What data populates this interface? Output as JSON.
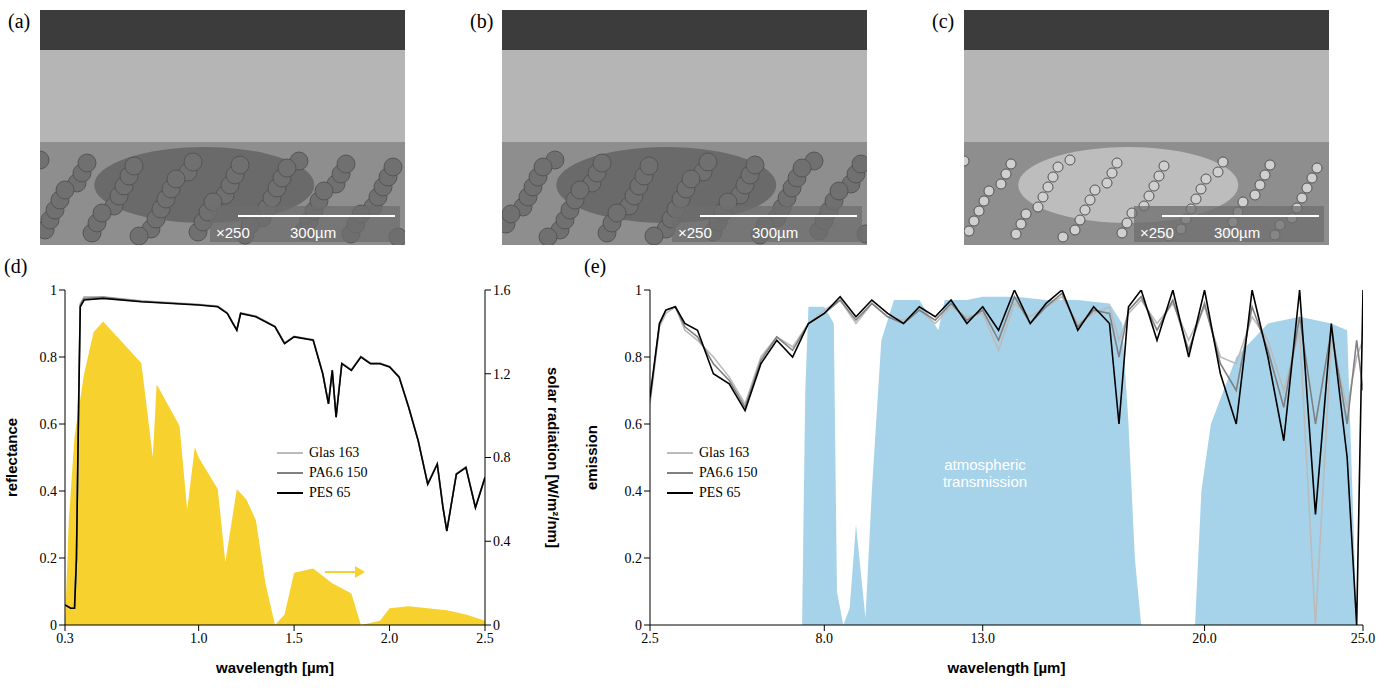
{
  "images": [
    {
      "label": "(a)",
      "magnification": "×250",
      "scale_bar": "300µm"
    },
    {
      "label": "(b)",
      "magnification": "×250",
      "scale_bar": "300µm"
    },
    {
      "label": "(c)",
      "magnification": "×250",
      "scale_bar": "300µm"
    }
  ],
  "chart_data": [
    {
      "type": "line",
      "label": "(d)",
      "x_label": "wavelength [µm]",
      "y_label": "reflectance",
      "y2_label": "solar radiation [W/m²/nm]",
      "xlim": [
        0.3,
        2.5
      ],
      "xticks": [
        0.3,
        {
          "value": 1,
          "label": "1.0"
        },
        1.5,
        {
          "value": 2,
          "label": "2.0"
        },
        2.5
      ],
      "ylim": [
        0,
        1
      ],
      "yticks": [
        0,
        0.2,
        0.4,
        0.6,
        0.8,
        1
      ],
      "y2lim": [
        0,
        1.6
      ],
      "y2ticks": [
        0,
        0.4,
        0.8,
        1.2,
        1.6
      ],
      "grid": false,
      "legend": "center right",
      "series": [
        {
          "type": "area",
          "axis": "y2",
          "color": "#f7d12e",
          "x": [
            0.3,
            0.32,
            0.35,
            0.4,
            0.45,
            0.5,
            0.55,
            0.6,
            0.7,
            0.76,
            0.78,
            0.9,
            0.94,
            0.98,
            1.0,
            1.1,
            1.14,
            1.2,
            1.25,
            1.3,
            1.35,
            1.4,
            1.45,
            1.5,
            1.6,
            1.7,
            1.8,
            1.85,
            1.95,
            2.0,
            2.1,
            2.2,
            2.3,
            2.4,
            2.5
          ],
          "values": [
            0.0,
            0.5,
            0.9,
            1.2,
            1.4,
            1.45,
            1.4,
            1.35,
            1.25,
            0.8,
            1.15,
            0.95,
            0.55,
            0.85,
            0.8,
            0.65,
            0.3,
            0.65,
            0.6,
            0.5,
            0.2,
            0.0,
            0.05,
            0.25,
            0.27,
            0.2,
            0.15,
            0.0,
            0.02,
            0.08,
            0.09,
            0.08,
            0.07,
            0.05,
            0.02
          ]
        },
        {
          "name": "Glas 163",
          "color": "#bbbbbb",
          "x": [
            0.3,
            0.33,
            0.35,
            0.36,
            0.37,
            0.38,
            0.4,
            0.5,
            0.7,
            1.0,
            1.1,
            1.15,
            1.18,
            1.2,
            1.22,
            1.3,
            1.4,
            1.45,
            1.5,
            1.6,
            1.65,
            1.68,
            1.7,
            1.72,
            1.75,
            1.8,
            1.85,
            1.9,
            1.95,
            2.0,
            2.05,
            2.1,
            2.15,
            2.2,
            2.25,
            2.28,
            2.3,
            2.35,
            2.4,
            2.45,
            2.5
          ],
          "values": [
            0.06,
            0.05,
            0.05,
            0.21,
            0.62,
            0.96,
            0.98,
            0.98,
            0.968,
            0.957,
            0.952,
            0.932,
            0.9,
            0.882,
            0.932,
            0.922,
            0.892,
            0.842,
            0.862,
            0.852,
            0.752,
            0.662,
            0.762,
            0.622,
            0.782,
            0.762,
            0.802,
            0.782,
            0.782,
            0.772,
            0.742,
            0.652,
            0.552,
            0.422,
            0.482,
            0.352,
            0.282,
            0.452,
            0.472,
            0.352,
            0.442
          ]
        },
        {
          "name": "PA6.6 150",
          "color": "#808080",
          "x": [
            0.3,
            0.33,
            0.35,
            0.36,
            0.37,
            0.38,
            0.4,
            0.5,
            0.7,
            1.0,
            1.1,
            1.15,
            1.18,
            1.2,
            1.22,
            1.3,
            1.4,
            1.45,
            1.5,
            1.6,
            1.65,
            1.68,
            1.7,
            1.72,
            1.75,
            1.8,
            1.85,
            1.9,
            1.95,
            2.0,
            2.05,
            2.1,
            2.15,
            2.2,
            2.25,
            2.28,
            2.3,
            2.35,
            2.4,
            2.45,
            2.5
          ],
          "values": [
            0.06,
            0.05,
            0.05,
            0.2,
            0.61,
            0.955,
            0.975,
            0.978,
            0.966,
            0.956,
            0.951,
            0.931,
            0.9,
            0.881,
            0.931,
            0.921,
            0.891,
            0.841,
            0.861,
            0.851,
            0.751,
            0.661,
            0.761,
            0.621,
            0.781,
            0.761,
            0.801,
            0.781,
            0.781,
            0.771,
            0.741,
            0.651,
            0.551,
            0.421,
            0.481,
            0.351,
            0.281,
            0.451,
            0.471,
            0.351,
            0.441
          ]
        },
        {
          "name": "PES 65",
          "color": "#000000",
          "x": [
            0.3,
            0.33,
            0.35,
            0.36,
            0.37,
            0.38,
            0.4,
            0.5,
            0.7,
            1.0,
            1.1,
            1.15,
            1.18,
            1.2,
            1.22,
            1.3,
            1.4,
            1.45,
            1.5,
            1.6,
            1.65,
            1.68,
            1.7,
            1.72,
            1.75,
            1.8,
            1.85,
            1.9,
            1.95,
            2.0,
            2.05,
            2.1,
            2.15,
            2.2,
            2.25,
            2.28,
            2.3,
            2.35,
            2.4,
            2.45,
            2.5
          ],
          "values": [
            0.06,
            0.05,
            0.05,
            0.2,
            0.6,
            0.95,
            0.97,
            0.975,
            0.965,
            0.955,
            0.95,
            0.93,
            0.9,
            0.88,
            0.93,
            0.92,
            0.89,
            0.84,
            0.86,
            0.85,
            0.75,
            0.66,
            0.76,
            0.62,
            0.78,
            0.76,
            0.8,
            0.78,
            0.78,
            0.77,
            0.74,
            0.65,
            0.55,
            0.42,
            0.48,
            0.35,
            0.28,
            0.45,
            0.47,
            0.35,
            0.44
          ]
        }
      ]
    },
    {
      "type": "line",
      "label": "(e)",
      "x_label": "wavelength [µm]",
      "y_label": "emission",
      "xlim": [
        2.5,
        25
      ],
      "xticks": [
        2.5,
        {
          "value": 8,
          "label": "8.0"
        },
        {
          "value": 13,
          "label": "13.0"
        },
        {
          "value": 20,
          "label": "20.0"
        },
        {
          "value": 25,
          "label": "25.0"
        }
      ],
      "ylim": [
        0,
        1
      ],
      "yticks": [
        0,
        0.2,
        0.4,
        0.6,
        0.8,
        1
      ],
      "grid": false,
      "legend": "center left",
      "annotations": [
        {
          "text": "atmospheric transmission"
        }
      ],
      "series": [
        {
          "type": "area",
          "color": "#a6d3ea",
          "x": [
            2.5,
            7.3,
            7.4,
            7.5,
            8.0,
            8.3,
            8.4,
            8.6,
            8.8,
            9.0,
            9.3,
            9.5,
            9.8,
            10.2,
            11.0,
            11.6,
            11.8,
            12.5,
            13.0,
            14.0,
            15.0,
            16.0,
            17.0,
            17.4,
            17.6,
            17.8,
            18.0,
            19.7,
            19.9,
            20.2,
            20.6,
            21.0,
            21.5,
            22.0,
            23.0,
            24.0,
            24.5,
            24.7,
            24.8,
            25.0
          ],
          "values": [
            0,
            0,
            0.7,
            0.95,
            0.95,
            0.9,
            0.1,
            0,
            0.05,
            0.3,
            0.02,
            0.4,
            0.85,
            0.97,
            0.97,
            0.88,
            0.97,
            0.97,
            0.98,
            0.98,
            0.97,
            0.97,
            0.96,
            0.9,
            0.6,
            0.2,
            0,
            0,
            0.4,
            0.6,
            0.7,
            0.8,
            0.85,
            0.9,
            0.92,
            0.9,
            0.88,
            0.3,
            0,
            0
          ]
        },
        {
          "name": "Glas 163",
          "color": "#bbbbbb",
          "x": [
            2.5,
            2.8,
            3.0,
            3.3,
            3.6,
            4.0,
            4.5,
            5.0,
            5.5,
            6.0,
            6.5,
            7.0,
            7.5,
            8.0,
            8.5,
            9.0,
            9.5,
            10.0,
            10.5,
            11.0,
            11.5,
            12.0,
            12.5,
            13.0,
            13.5,
            14.0,
            14.5,
            15.0,
            15.5,
            16.0,
            16.5,
            17.0,
            17.3,
            17.6,
            18.0,
            18.5,
            19.0,
            19.5,
            20.0,
            20.5,
            21.0,
            21.5,
            22.0,
            22.5,
            23.0,
            23.5,
            24.0,
            24.5,
            24.8,
            25.0
          ],
          "values": [
            0.66,
            0.89,
            0.93,
            0.95,
            0.88,
            0.85,
            0.8,
            0.74,
            0.66,
            0.8,
            0.86,
            0.83,
            0.9,
            0.94,
            0.97,
            0.9,
            0.96,
            0.92,
            0.91,
            0.94,
            0.9,
            0.95,
            0.92,
            0.93,
            0.82,
            0.96,
            0.92,
            0.95,
            0.98,
            0.9,
            0.93,
            0.95,
            0.85,
            0.93,
            0.97,
            0.9,
            0.96,
            0.85,
            0.95,
            0.8,
            0.78,
            0.92,
            0.85,
            0.7,
            0.88,
            0.0,
            0.85,
            0.65,
            0.8,
            0.85
          ]
        },
        {
          "name": "PA6.6 150",
          "color": "#808080",
          "x": [
            2.5,
            2.8,
            3.0,
            3.3,
            3.6,
            4.0,
            4.5,
            5.0,
            5.5,
            6.0,
            6.5,
            7.0,
            7.5,
            8.0,
            8.5,
            9.0,
            9.5,
            10.0,
            10.5,
            11.0,
            11.5,
            12.0,
            12.5,
            13.0,
            13.5,
            14.0,
            14.5,
            15.0,
            15.5,
            16.0,
            16.5,
            17.0,
            17.3,
            17.6,
            18.0,
            18.5,
            19.0,
            19.5,
            20.0,
            20.5,
            21.0,
            21.5,
            22.0,
            22.5,
            23.0,
            23.5,
            24.0,
            24.5,
            24.8,
            25.0
          ],
          "values": [
            0.67,
            0.9,
            0.94,
            0.95,
            0.89,
            0.86,
            0.78,
            0.73,
            0.65,
            0.79,
            0.86,
            0.82,
            0.9,
            0.93,
            0.97,
            0.91,
            0.96,
            0.92,
            0.9,
            0.94,
            0.91,
            0.96,
            0.91,
            0.94,
            0.85,
            0.98,
            0.9,
            0.95,
            0.99,
            0.89,
            0.94,
            0.93,
            0.8,
            0.94,
            0.98,
            0.88,
            0.97,
            0.82,
            0.96,
            0.78,
            0.7,
            0.95,
            0.82,
            0.65,
            0.92,
            0.6,
            0.88,
            0.6,
            0.85,
            0.7
          ]
        },
        {
          "name": "PES 65",
          "color": "#000000",
          "x": [
            2.5,
            2.8,
            3.0,
            3.3,
            3.6,
            4.0,
            4.5,
            5.0,
            5.5,
            6.0,
            6.5,
            7.0,
            7.5,
            8.0,
            8.5,
            9.0,
            9.5,
            10.0,
            10.5,
            11.0,
            11.5,
            12.0,
            12.5,
            13.0,
            13.5,
            14.0,
            14.5,
            15.0,
            15.5,
            16.0,
            16.5,
            17.0,
            17.3,
            17.6,
            18.0,
            18.5,
            19.0,
            19.5,
            20.0,
            20.5,
            21.0,
            21.5,
            22.0,
            22.5,
            23.0,
            23.5,
            24.0,
            24.5,
            24.8,
            25.0
          ],
          "values": [
            0.68,
            0.9,
            0.94,
            0.95,
            0.9,
            0.88,
            0.75,
            0.72,
            0.64,
            0.78,
            0.85,
            0.8,
            0.9,
            0.93,
            0.98,
            0.92,
            0.97,
            0.93,
            0.9,
            0.95,
            0.92,
            0.97,
            0.9,
            0.95,
            0.88,
            1.0,
            0.9,
            0.96,
            1.0,
            0.88,
            0.95,
            0.9,
            0.6,
            0.95,
            1.0,
            0.85,
            1.0,
            0.8,
            1.0,
            0.75,
            0.6,
            1.0,
            0.8,
            0.55,
            1.0,
            0.33,
            0.9,
            0.5,
            0.0,
            1.0
          ]
        }
      ]
    }
  ]
}
